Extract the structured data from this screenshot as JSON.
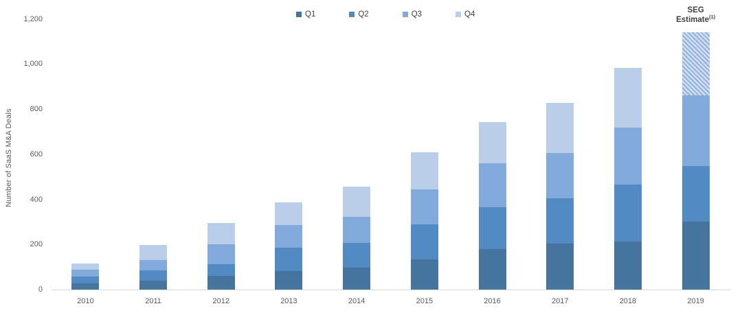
{
  "chart_data": {
    "type": "bar",
    "stacked": true,
    "title": "",
    "ylabel": "Number of SaaS M&A Deals",
    "ylim": [
      0,
      1200
    ],
    "ytick_values": [
      0,
      200,
      400,
      600,
      800,
      1000,
      1200
    ],
    "ytick_labels": [
      "0",
      "200",
      "400",
      "600",
      "800",
      "1,000",
      "1,200"
    ],
    "grid": false,
    "legend_position": "top-center",
    "categories": [
      "2010",
      "2011",
      "2012",
      "2013",
      "2014",
      "2015",
      "2016",
      "2017",
      "2018",
      "2019"
    ],
    "series": [
      {
        "name": "Q1",
        "color": "#45749F",
        "values": [
          27,
          38,
          62,
          82,
          98,
          134,
          180,
          205,
          214,
          302
        ]
      },
      {
        "name": "Q2",
        "color": "#528BC4",
        "values": [
          31,
          46,
          50,
          104,
          110,
          156,
          186,
          198,
          250,
          244
        ]
      },
      {
        "name": "Q3",
        "color": "#82ABDB",
        "values": [
          31,
          48,
          88,
          101,
          113,
          153,
          195,
          202,
          253,
          315
        ]
      },
      {
        "name": "Q4",
        "color": "#BACDE9",
        "values": [
          27,
          65,
          95,
          98,
          134,
          165,
          181,
          223,
          266,
          0
        ]
      }
    ],
    "totals": [
      116,
      197,
      295,
      385,
      455,
      608,
      742,
      828,
      983,
      1142
    ],
    "estimate_segment": {
      "category": "2019",
      "series_name": "Q4",
      "value": 281,
      "style": "diagonal-hatch",
      "hatch_bg_color": "#D3DEF1",
      "hatch_stripe_color": "#8FB0DC",
      "label": {
        "line1": "SEG",
        "line2": "Estimate",
        "superscript": "(1)"
      }
    },
    "colors": {
      "axis_text": "#595959",
      "legend_text": "#404040",
      "baseline": "#D6D6D6",
      "background": "#FFFFFF"
    }
  }
}
